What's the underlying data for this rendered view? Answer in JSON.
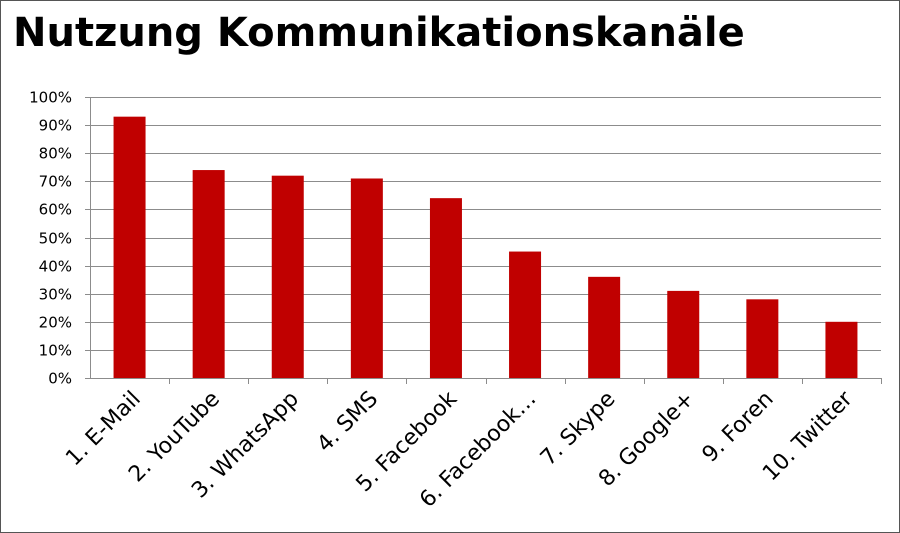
{
  "chart_data": {
    "type": "bar",
    "title": "Nutzung Kommunikationskanäle",
    "xlabel": "",
    "ylabel": "",
    "categories": [
      "1. E-Mail",
      "2. YouTube",
      "3. WhatsApp",
      "4. SMS",
      "5. Facebook",
      "6. Facebook…",
      "7. Skype",
      "8. Google+",
      "9. Foren",
      "10. Twitter"
    ],
    "values": [
      93,
      74,
      72,
      71,
      64,
      45,
      36,
      31,
      28,
      20
    ],
    "ylim": [
      0,
      100
    ],
    "yticks": [
      "0%",
      "10%",
      "20%",
      "30%",
      "40%",
      "50%",
      "60%",
      "70%",
      "80%",
      "90%",
      "100%"
    ],
    "grid": true,
    "legend": "none",
    "colors": {
      "bar": "#c00000",
      "grid": "#8c8c8c",
      "axis": "#8c8c8c"
    }
  }
}
